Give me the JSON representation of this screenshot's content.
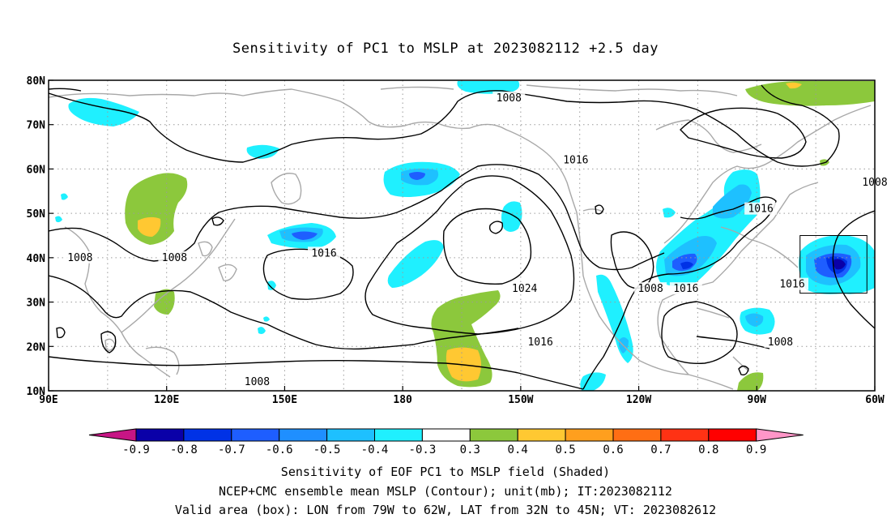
{
  "title": "Sensitivity of PC1 to MSLP at 2023082112 +2.5 day",
  "map": {
    "lon_labels": [
      "90E",
      "120E",
      "150E",
      "180",
      "150W",
      "120W",
      "90W",
      "60W"
    ],
    "lat_labels": [
      "80N",
      "70N",
      "60N",
      "50N",
      "40N",
      "30N",
      "20N",
      "10N"
    ],
    "contour_labels": [
      {
        "text": "1008",
        "lon": -153,
        "lat": 76
      },
      {
        "text": "1016",
        "lon": -136,
        "lat": 62
      },
      {
        "text": "1008",
        "lon": -60,
        "lat": 57
      },
      {
        "text": "1016",
        "lon": -89,
        "lat": 51
      },
      {
        "text": "1008",
        "lon": 98,
        "lat": 40
      },
      {
        "text": "1008",
        "lon": 122,
        "lat": 40
      },
      {
        "text": "1016",
        "lon": 160,
        "lat": 41
      },
      {
        "text": "1024",
        "lon": -149,
        "lat": 33
      },
      {
        "text": "1008",
        "lon": -117,
        "lat": 33
      },
      {
        "text": "1016",
        "lon": -108,
        "lat": 33
      },
      {
        "text": "1016",
        "lon": -81,
        "lat": 34
      },
      {
        "text": "1016",
        "lon": -145,
        "lat": 21
      },
      {
        "text": "1008",
        "lon": -84,
        "lat": 21
      },
      {
        "text": "1008",
        "lon": 143,
        "lat": 12
      }
    ],
    "valid_box": {
      "lon_west": -79,
      "lon_east": -62,
      "lat_south": 32,
      "lat_north": 45
    }
  },
  "colorbar": {
    "labels": [
      "-0.9",
      "-0.8",
      "-0.7",
      "-0.6",
      "-0.5",
      "-0.4",
      "-0.3",
      "0.3",
      "0.4",
      "0.5",
      "0.6",
      "0.7",
      "0.8",
      "0.9"
    ],
    "colors": [
      "#c71585",
      "#0a00a8",
      "#0032e6",
      "#1e5eff",
      "#1f8fff",
      "#1ec0ff",
      "#1ff0ff",
      "#ffffff",
      "#8cc83c",
      "#ffc832",
      "#ff9f1e",
      "#ff6e14",
      "#ff3214",
      "#ff0000",
      "#ff96c8"
    ]
  },
  "captions": {
    "line1": "Sensitivity of EOF PC1 to MSLP field (Shaded)",
    "line2": "NCEP+CMC ensemble mean MSLP (Contour); unit(mb); IT:2023082112",
    "line3": "Valid area (box): LON from 79W to 62W, LAT from 32N to 45N; VT: 2023082612"
  }
}
